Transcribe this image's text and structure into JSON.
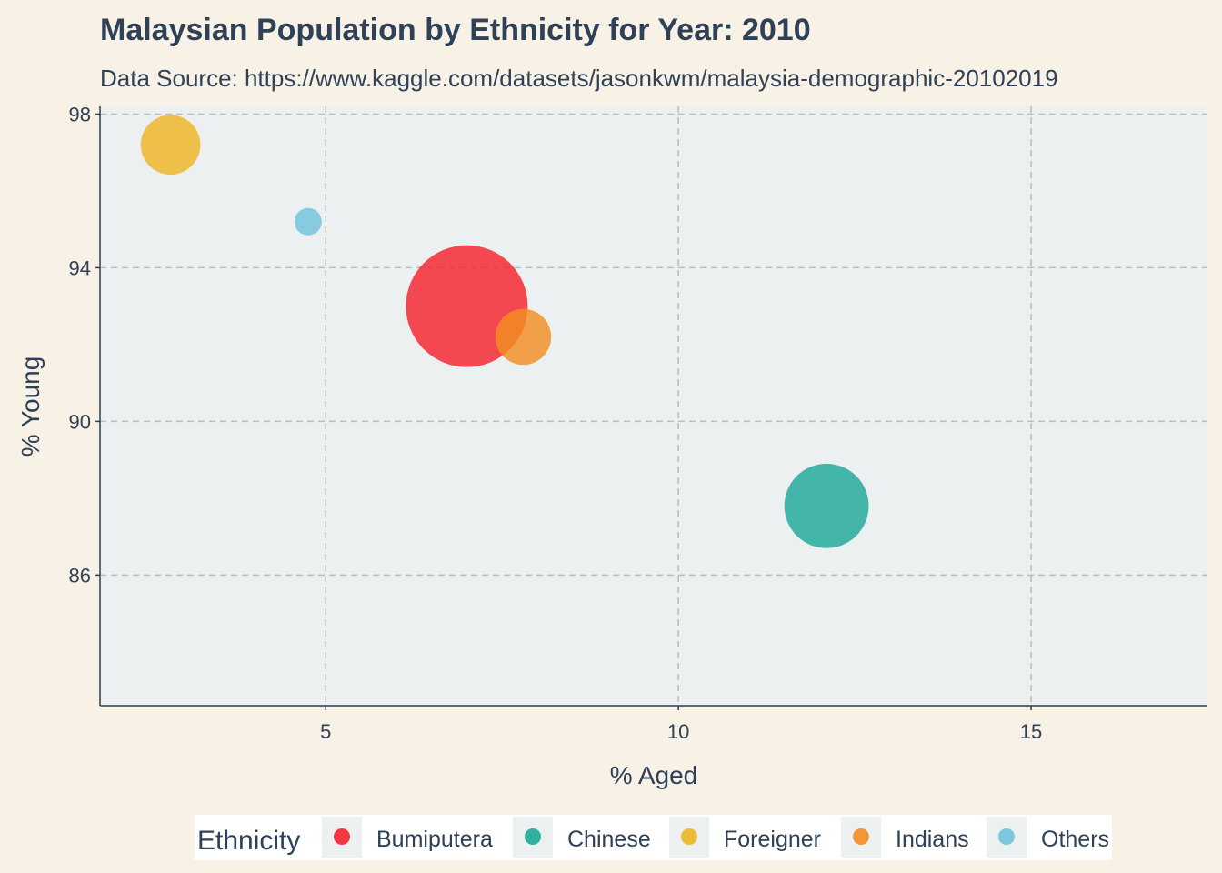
{
  "chart_data": {
    "type": "scatter",
    "title": "Malaysian Population by Ethnicity for Year: 2010",
    "subtitle": "Data Source: https://www.kaggle.com/datasets/jasonkwm/malaysia-demographic-20102019",
    "xlabel": "% Aged",
    "ylabel": "% Young",
    "xlim": [
      1.8,
      17.5
    ],
    "ylim": [
      82.6,
      98.2
    ],
    "x_ticks": [
      5,
      10,
      15
    ],
    "y_ticks": [
      86,
      90,
      94,
      98
    ],
    "grid": true,
    "legend_title": "Ethnicity",
    "legend_position": "bottom",
    "series": [
      {
        "name": "Bumiputera",
        "x": 7.0,
        "y": 93.0,
        "size": 100,
        "color": "#f5222d"
      },
      {
        "name": "Chinese",
        "x": 12.1,
        "y": 87.8,
        "size": 48,
        "color": "#1fa798"
      },
      {
        "name": "Foreigner",
        "x": 2.8,
        "y": 97.2,
        "size": 24,
        "color": "#eeb524"
      },
      {
        "name": "Indians",
        "x": 7.8,
        "y": 92.2,
        "size": 21,
        "color": "#f28d22"
      },
      {
        "name": "Others",
        "x": 4.75,
        "y": 95.2,
        "size": 5,
        "color": "#6fc2dc"
      }
    ]
  }
}
